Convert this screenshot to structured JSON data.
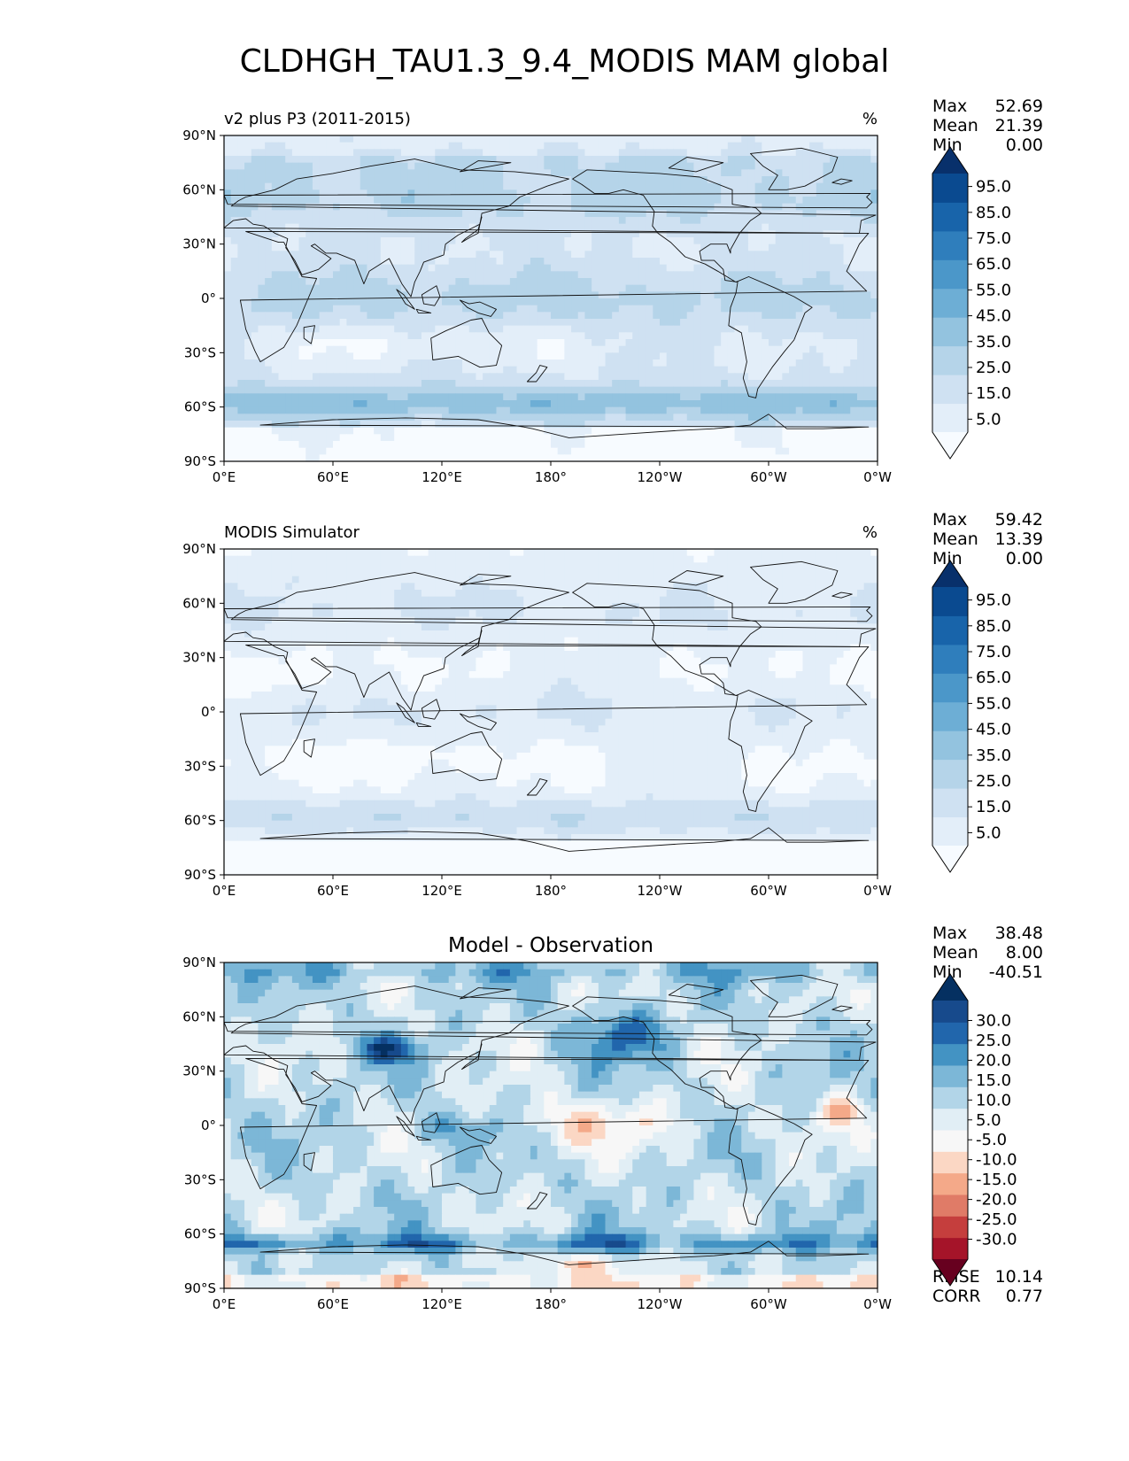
{
  "title": "CLDHGH_TAU1.3_9.4_MODIS MAM global",
  "lon_ticks": [
    "0°E",
    "60°E",
    "120°E",
    "180°",
    "120°W",
    "60°W",
    "0°W"
  ],
  "lat_ticks": [
    "90°N",
    "60°N",
    "30°N",
    "0°",
    "30°S",
    "60°S",
    "90°S"
  ],
  "stat_labels": {
    "max": "Max",
    "mean": "Mean",
    "min": "Min",
    "rmse": "RMSE",
    "corr": "CORR"
  },
  "panels": [
    {
      "id": "test",
      "left_title": "v2 plus P3 (2011-2015)",
      "center_title": "",
      "units": "%",
      "stats": {
        "max": "52.69",
        "mean": "21.39",
        "min": "0.00"
      },
      "colorbar": {
        "levels": [
          0,
          5,
          10,
          15,
          20,
          25,
          30,
          35,
          40,
          45,
          50,
          55,
          60,
          65,
          70,
          75,
          80,
          85,
          90,
          95,
          100
        ],
        "tick_labels": [
          "95.0",
          "85.0",
          "75.0",
          "65.0",
          "55.0",
          "45.0",
          "35.0",
          "25.0",
          "15.0",
          "5.0"
        ],
        "colors_bottom_to_top": [
          "#f7fbff",
          "#e3eef9",
          "#cfe1f2",
          "#b5d4e9",
          "#93c3df",
          "#6daed5",
          "#4b97c9",
          "#2f7ebc",
          "#1864aa",
          "#0a4a90",
          "#08306b"
        ],
        "extend": "both"
      }
    },
    {
      "id": "ref",
      "left_title": "MODIS Simulator",
      "center_title": "",
      "units": "%",
      "stats": {
        "max": "59.42",
        "mean": "13.39",
        "min": "0.00"
      },
      "colorbar": {
        "levels": [
          0,
          5,
          10,
          15,
          20,
          25,
          30,
          35,
          40,
          45,
          50,
          55,
          60,
          65,
          70,
          75,
          80,
          85,
          90,
          95,
          100
        ],
        "tick_labels": [
          "95.0",
          "85.0",
          "75.0",
          "65.0",
          "55.0",
          "45.0",
          "35.0",
          "25.0",
          "15.0",
          "5.0"
        ],
        "colors_bottom_to_top": [
          "#f7fbff",
          "#e3eef9",
          "#cfe1f2",
          "#b5d4e9",
          "#93c3df",
          "#6daed5",
          "#4b97c9",
          "#2f7ebc",
          "#1864aa",
          "#0a4a90",
          "#08306b"
        ],
        "extend": "both"
      }
    },
    {
      "id": "diff",
      "left_title": "",
      "center_title": "Model - Observation",
      "units": "",
      "stats": {
        "max": "38.48",
        "mean": "8.00",
        "min": "-40.51",
        "rmse": "10.14",
        "corr": "0.77"
      },
      "colorbar": {
        "levels": [
          -35,
          -30,
          -25,
          -20,
          -15,
          -10,
          -5,
          5,
          10,
          15,
          20,
          25,
          30,
          35
        ],
        "tick_labels": [
          "30.0",
          "25.0",
          "20.0",
          "15.0",
          "10.0",
          "5.0",
          "-5.0",
          "-10.0",
          "-15.0",
          "-20.0",
          "-25.0",
          "-30.0"
        ],
        "colors_bottom_to_top": [
          "#67001f",
          "#a51429",
          "#c53e3d",
          "#e07b67",
          "#f4a989",
          "#fbd7c4",
          "#f7f7f7",
          "#e1eef5",
          "#b2d5e8",
          "#7cb7d7",
          "#4393c3",
          "#2166ac",
          "#174a8c",
          "#053061"
        ],
        "extend": "both"
      }
    }
  ],
  "chart_data": {
    "type": "heatmap",
    "title": "CLDHGH_TAU1.3_9.4_MODIS MAM global",
    "x_range_deg_lon": [
      0,
      360
    ],
    "y_range_deg_lat": [
      -90,
      90
    ],
    "x_tick_values": [
      0,
      60,
      120,
      180,
      240,
      300,
      360
    ],
    "y_tick_values": [
      90,
      60,
      30,
      0,
      -30,
      -60,
      -90
    ],
    "grid": false,
    "legend": "colorbar right of each map",
    "zonal_mean_estimates": {
      "latitudes": [
        85,
        70,
        55,
        40,
        25,
        10,
        0,
        -10,
        -25,
        -40,
        -55,
        -65,
        -75,
        -85
      ],
      "test_percent": [
        12,
        25,
        28,
        24,
        18,
        20,
        20,
        20,
        18,
        25,
        40,
        35,
        8,
        3
      ],
      "ref_percent": [
        5,
        14,
        17,
        13,
        8,
        10,
        10,
        10,
        9,
        15,
        25,
        22,
        3,
        1
      ],
      "diff_percent": [
        10,
        10,
        11,
        10,
        8,
        9,
        9,
        10,
        9,
        10,
        15,
        16,
        4,
        2
      ]
    }
  }
}
